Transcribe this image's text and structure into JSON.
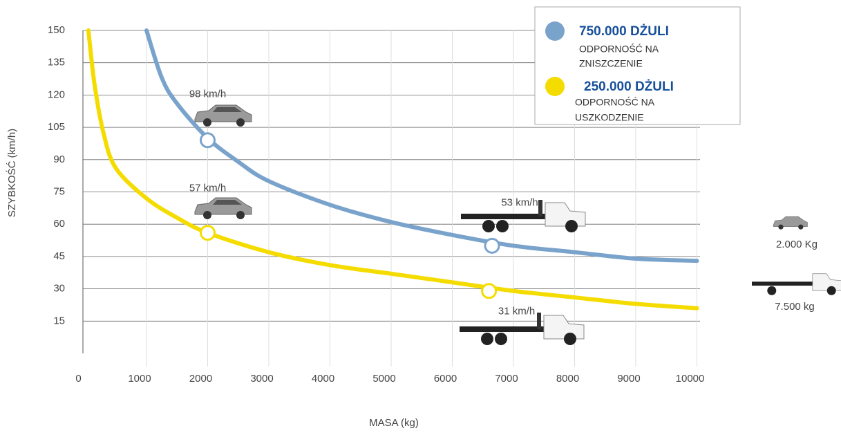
{
  "chart_data": {
    "type": "line",
    "ylabel": "SZYBKOŚĆ (km/h)",
    "xlabel": "MASA (kg)",
    "xlim": [
      0,
      10000
    ],
    "xticks": [
      0,
      1000,
      2000,
      3000,
      4000,
      5000,
      6000,
      7000,
      8000,
      9000,
      10000
    ],
    "ylim": [
      0,
      150
    ],
    "yticks": [
      15,
      30,
      45,
      60,
      75,
      90,
      105,
      120,
      135,
      150
    ],
    "grid": true,
    "series": [
      {
        "name": "750.000 DŻULI",
        "description": [
          "ODPORNOŚĆ NA",
          "ZNISZCZENIE"
        ],
        "color": "#7aa3cc",
        "x": [
          1000,
          1250,
          1500,
          2000,
          2500,
          3000,
          4000,
          5000,
          6000,
          7000,
          8000,
          9000,
          10000
        ],
        "values": [
          150,
          128,
          116,
          100,
          89,
          80,
          69,
          61,
          55,
          50,
          47,
          44,
          43
        ],
        "markers": {
          "x": [
            2000,
            6650
          ],
          "y": [
            99,
            50
          ]
        }
      },
      {
        "name": "250.000 DŻULI",
        "description": [
          "ODPORNOŚĆ NA",
          "USZKODZENIE"
        ],
        "color": "#f5dc00",
        "x": [
          50,
          150,
          300,
          500,
          1000,
          1500,
          2000,
          3000,
          4000,
          5000,
          6000,
          7000,
          8000,
          9000,
          10000
        ],
        "values": [
          150,
          125,
          102,
          86,
          72,
          63,
          56,
          47,
          41,
          37,
          33,
          29,
          26,
          23,
          21
        ],
        "markers": {
          "x": [
            2000,
            6600
          ],
          "y": [
            56,
            29
          ]
        }
      }
    ],
    "annotations": [
      "98 km/h",
      "53 km/h",
      "57 km/h",
      "31 km/h"
    ],
    "vehicle_labels": [
      "2.000 Kg",
      "7.500 kg"
    ]
  }
}
